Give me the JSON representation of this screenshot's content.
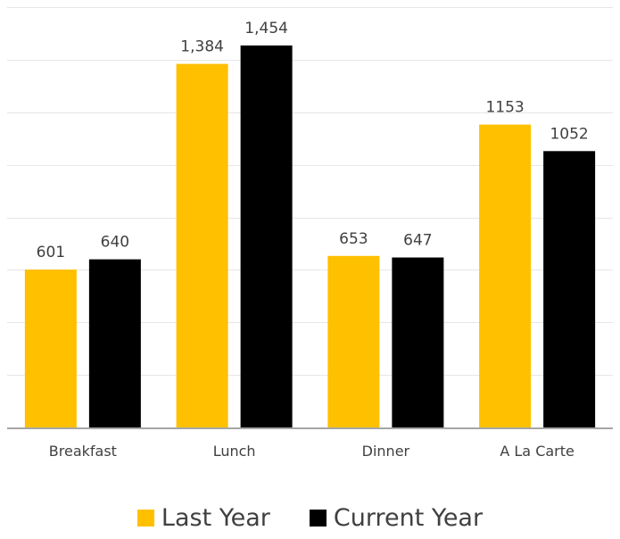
{
  "chart_data": {
    "type": "bar",
    "categories": [
      "Breakfast",
      "Lunch",
      "Dinner",
      "A La Carte"
    ],
    "series": [
      {
        "name": "Last Year",
        "values": [
          601,
          1384,
          653,
          1153
        ],
        "labels": [
          "601",
          "1,384",
          "653",
          "1153"
        ],
        "color": "#FFC000"
      },
      {
        "name": "Current Year",
        "values": [
          640,
          1454,
          647,
          1052
        ],
        "labels": [
          "640",
          "1,454",
          "647",
          "1052"
        ],
        "color": "#000000"
      }
    ],
    "ylim": [
      0,
      1600
    ],
    "grid": true,
    "legend_position": "bottom",
    "gridline_color": "#E6E6E6",
    "axis_color": "#A6A6A6",
    "label_color": "#404040"
  }
}
